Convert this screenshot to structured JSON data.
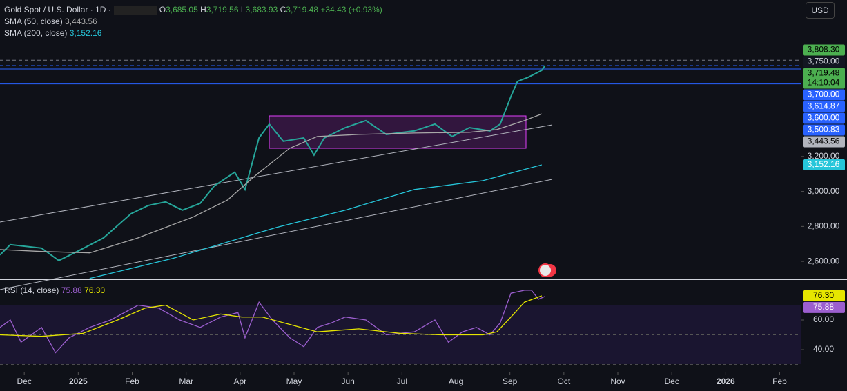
{
  "header": {
    "ohlc": [
      [
        "O",
        "3,685.05"
      ],
      [
        "H",
        "3,719.56"
      ],
      [
        "L",
        "3,683.93"
      ],
      [
        "C",
        "3,719.48"
      ]
    ],
    "change": "+34.43 (+0.93%)",
    "currency": "USD",
    "countdown": "14:10:04"
  },
  "chart_data": [
    {
      "type": "line",
      "grid": false,
      "xlim": [
        -0.45,
        14.39
      ],
      "xticks": [
        {
          "value": 0,
          "label": "Dec"
        },
        {
          "value": 1,
          "label": "2025",
          "bold": true
        },
        {
          "value": 2,
          "label": "Feb"
        },
        {
          "value": 3,
          "label": "Mar"
        },
        {
          "value": 4,
          "label": "Apr"
        },
        {
          "value": 5,
          "label": "May"
        },
        {
          "value": 6,
          "label": "Jun"
        },
        {
          "value": 7,
          "label": "Jul"
        },
        {
          "value": 8,
          "label": "Aug"
        },
        {
          "value": 9,
          "label": "Sep"
        },
        {
          "value": 10,
          "label": "Oct"
        },
        {
          "value": 11,
          "label": "Nov"
        },
        {
          "value": 12,
          "label": "Dec"
        },
        {
          "value": 13,
          "label": "2026",
          "bold": true
        },
        {
          "value": 14,
          "label": "Feb"
        }
      ],
      "ylim": [
        2498,
        4094
      ],
      "yticks": [
        {
          "value": 2600,
          "label": "2,600.00"
        },
        {
          "value": 2800,
          "label": "2,800.00"
        },
        {
          "value": 3000,
          "label": "3,000.00"
        },
        {
          "value": 3200,
          "label": "3,200.00"
        }
      ],
      "series": [
        {
          "name": "Gold Spot / U.S. Dollar · 1D ·",
          "color": "#26a69a",
          "x": [
            -0.45,
            -0.26,
            0.32,
            0.64,
            0.98,
            1.47,
            1.98,
            2.3,
            2.62,
            2.93,
            3.26,
            3.52,
            3.9,
            4.09,
            4.35,
            4.54,
            4.8,
            5.18,
            5.37,
            5.56,
            5.95,
            6.33,
            6.71,
            7.23,
            7.61,
            7.93,
            8.25,
            8.63,
            8.82,
            9.02,
            9.14,
            9.34,
            9.59,
            9.65
          ],
          "values": [
            2637,
            2696,
            2676,
            2605,
            2657,
            2735,
            2873,
            2920,
            2940,
            2893,
            2932,
            3031,
            3110,
            3011,
            3306,
            3385,
            3287,
            3306,
            3208,
            3306,
            3365,
            3405,
            3326,
            3346,
            3385,
            3314,
            3365,
            3346,
            3385,
            3543,
            3629,
            3653,
            3692,
            3719.48
          ]
        },
        {
          "name": "SMA (50, close)",
          "legend_value": "3,443.56",
          "color": "#a8a8a8",
          "x": [
            -0.45,
            0.32,
            1.21,
            2.11,
            3.13,
            3.77,
            4.28,
            4.92,
            5.43,
            6.2,
            7.23,
            8.25,
            8.76,
            9.27,
            9.59
          ],
          "values": [
            2668,
            2657,
            2649,
            2735,
            2854,
            2952,
            3090,
            3247,
            3314,
            3326,
            3334,
            3338,
            3354,
            3405,
            3443.56
          ]
        },
        {
          "name": "SMA (200, close)",
          "legend_value": "3,152.16",
          "color": "#26c6da",
          "x": [
            1.21,
            2.75,
            4.67,
            5.95,
            7.23,
            8.5,
            9.59
          ],
          "values": [
            2503,
            2617,
            2794,
            2893,
            3011,
            3062,
            3152.16
          ]
        }
      ],
      "price_labels": [
        {
          "value": 3808.3,
          "label": "3,808.30",
          "bg": "#4caf50",
          "fg": "#000000",
          "line": "dash",
          "line_color": "#4caf50"
        },
        {
          "value": 3750,
          "label": "3,750.00",
          "bg": "#131722",
          "fg": "#d1d4dc",
          "line": "dash",
          "line_color": "#787b86"
        },
        {
          "value": 3719.48,
          "label": "3,719.48",
          "bg": "#4caf50",
          "fg": "#000000",
          "line": "dash",
          "line_color": "#2962ff",
          "countdown": true
        },
        {
          "value": 3700,
          "label": "3,700.00",
          "bg": "#2962ff",
          "fg": "#ffffff",
          "line": "solid",
          "line_color": "#2962ff"
        },
        {
          "value": 3614.87,
          "label": "3,614.87",
          "bg": "#2962ff",
          "fg": "#ffffff",
          "line": "solid",
          "line_color": "#2962ff"
        },
        {
          "value": 3600,
          "label": "3,600.00",
          "bg": "#2962ff",
          "fg": "#ffffff"
        },
        {
          "value": 3500.83,
          "label": "3,500.83",
          "bg": "#2962ff",
          "fg": "#ffffff"
        },
        {
          "value": 3443.56,
          "label": "3,443.56",
          "bg": "#b2b5be",
          "fg": "#000000"
        },
        {
          "value": 3152.16,
          "label": "3,152.16",
          "bg": "#26c6da",
          "fg": "#ffffff"
        }
      ]
    },
    {
      "type": "line",
      "xlim": [
        -0.45,
        14.39
      ],
      "ylim": [
        24.7,
        87.4
      ],
      "yticks": [
        {
          "value": 40,
          "label": "40.00"
        },
        {
          "value": 60,
          "label": "60.00"
        }
      ],
      "levels": [
        30,
        50,
        70
      ],
      "series": [
        {
          "name": "RSI (14, close)",
          "legend_value": "75.88",
          "color": "#9c5fcf",
          "x": [
            -0.45,
            -0.26,
            -0.06,
            0.32,
            0.58,
            0.83,
            1.21,
            1.6,
            2.11,
            2.49,
            2.88,
            3.26,
            3.64,
            3.96,
            4.09,
            4.35,
            4.6,
            4.92,
            5.18,
            5.43,
            5.69,
            5.95,
            6.33,
            6.71,
            7.23,
            7.61,
            7.86,
            8.12,
            8.38,
            8.63,
            8.82,
            9.02,
            9.27,
            9.4,
            9.53,
            9.65
          ],
          "values": [
            55,
            60,
            45,
            55,
            38,
            48,
            55,
            60,
            70,
            68,
            60,
            55,
            62,
            65,
            48,
            72,
            60,
            48,
            42,
            55,
            58,
            62,
            60,
            50,
            52,
            60,
            45,
            52,
            55,
            50,
            58,
            78,
            80,
            80,
            74,
            75.88
          ]
        },
        {
          "legend_value": "76.30",
          "color": "#e6e600",
          "x": [
            -0.45,
            0.32,
            1.09,
            1.73,
            2.24,
            2.62,
            3.13,
            3.64,
            4.03,
            4.41,
            4.92,
            5.43,
            6.2,
            6.97,
            7.74,
            8.5,
            8.76,
            9.02,
            9.27,
            9.59
          ],
          "values": [
            50,
            49,
            51,
            60,
            68,
            70,
            60,
            64,
            62,
            62,
            57,
            52,
            54,
            51,
            50,
            50,
            52,
            62,
            72,
            76.3
          ]
        }
      ],
      "price_labels": [
        {
          "value": 76.3,
          "label": "76.30",
          "bg": "#e6e600",
          "fg": "#000000"
        },
        {
          "value": 75.88,
          "label": "75.88",
          "bg": "#9c5fcf",
          "fg": "#ffffff"
        }
      ]
    }
  ]
}
